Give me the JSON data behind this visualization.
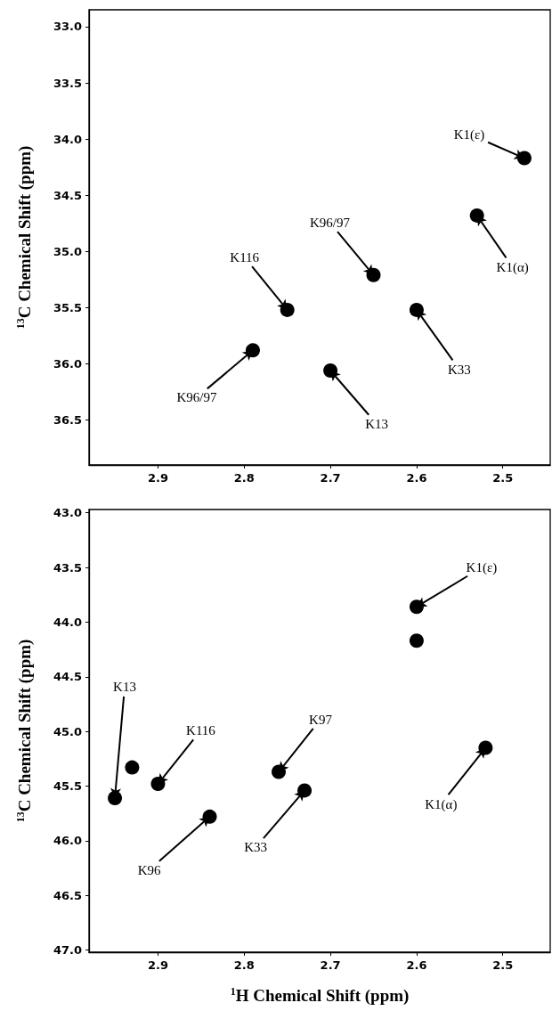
{
  "chart_data": [
    {
      "type": "scatter",
      "ylabel": "$^{13}$C Chemical Shift (ppm)",
      "xlim": [
        2.98,
        2.445
      ],
      "ylim": [
        36.9,
        32.85
      ],
      "xticks": [
        {
          "value": 2.9,
          "label": "2.9"
        },
        {
          "value": 2.8,
          "label": "2.8"
        },
        {
          "value": 2.7,
          "label": "2.7"
        },
        {
          "value": 2.6,
          "label": "2.6"
        },
        {
          "value": 2.5,
          "label": "2.5"
        }
      ],
      "yticks": [
        {
          "value": 33,
          "label": "33.0"
        },
        {
          "value": 33.5,
          "label": "33.5"
        },
        {
          "value": 34,
          "label": "34.0"
        },
        {
          "value": 34.5,
          "label": "34.5"
        },
        {
          "value": 35,
          "label": "35.0"
        },
        {
          "value": 35.5,
          "label": "35.5"
        },
        {
          "value": 36,
          "label": "36.0"
        },
        {
          "value": 36.5,
          "label": "36.5"
        }
      ],
      "marker": "circle",
      "series": [
        {
          "color": "#000000",
          "x": [
            2.475,
            2.53,
            2.65,
            2.75,
            2.6,
            2.79,
            2.7
          ],
          "values": [
            34.17,
            34.68,
            35.21,
            35.52,
            35.52,
            35.88,
            36.06
          ]
        }
      ],
      "annotations": [
        {
          "text": "K1(ε)",
          "x": 2.475,
          "y": 34.17
        },
        {
          "text": "K1(α)",
          "x": 2.53,
          "y": 34.68
        },
        {
          "text": "K96/97",
          "x": 2.65,
          "y": 35.21
        },
        {
          "text": "K116",
          "x": 2.75,
          "y": 35.52
        },
        {
          "text": "K33",
          "x": 2.6,
          "y": 35.52
        },
        {
          "text": "K96/97",
          "x": 2.79,
          "y": 35.88
        },
        {
          "text": "K13",
          "x": 2.7,
          "y": 36.06
        }
      ]
    },
    {
      "type": "scatter",
      "xlabel": "$^{1}$H Chemical Shift (ppm)",
      "ylabel": "$^{13}$C Chemical Shift (ppm)",
      "xlim": [
        2.98,
        2.445
      ],
      "ylim": [
        47.02,
        42.97
      ],
      "xticks": [
        {
          "value": 2.9,
          "label": "2.9"
        },
        {
          "value": 2.8,
          "label": "2.8"
        },
        {
          "value": 2.7,
          "label": "2.7"
        },
        {
          "value": 2.6,
          "label": "2.6"
        },
        {
          "value": 2.5,
          "label": "2.5"
        }
      ],
      "yticks": [
        {
          "value": 43,
          "label": "43.0"
        },
        {
          "value": 43.5,
          "label": "43.5"
        },
        {
          "value": 44,
          "label": "44.0"
        },
        {
          "value": 44.5,
          "label": "44.5"
        },
        {
          "value": 45,
          "label": "45.0"
        },
        {
          "value": 45.5,
          "label": "45.5"
        },
        {
          "value": 46,
          "label": "46.0"
        },
        {
          "value": 46.5,
          "label": "46.5"
        },
        {
          "value": 47,
          "label": "47.0"
        }
      ],
      "marker": "circle",
      "series": [
        {
          "color": "#000000",
          "x": [
            2.6,
            2.6,
            2.95,
            2.93,
            2.9,
            2.76,
            2.73,
            2.84,
            2.52
          ],
          "values": [
            43.86,
            44.17,
            45.61,
            45.33,
            45.48,
            45.37,
            45.54,
            45.78,
            45.15
          ]
        }
      ],
      "annotations": [
        {
          "text": "K1(ε)",
          "x": 2.6,
          "y": 43.86
        },
        {
          "text": "K13",
          "x": 2.95,
          "y": 45.61
        },
        {
          "text": "K116",
          "x": 2.9,
          "y": 45.48
        },
        {
          "text": "K97",
          "x": 2.76,
          "y": 45.37
        },
        {
          "text": "K33",
          "x": 2.73,
          "y": 45.54
        },
        {
          "text": "K96",
          "x": 2.84,
          "y": 45.78
        },
        {
          "text": "K1(α)",
          "x": 2.52,
          "y": 45.15
        }
      ]
    }
  ]
}
